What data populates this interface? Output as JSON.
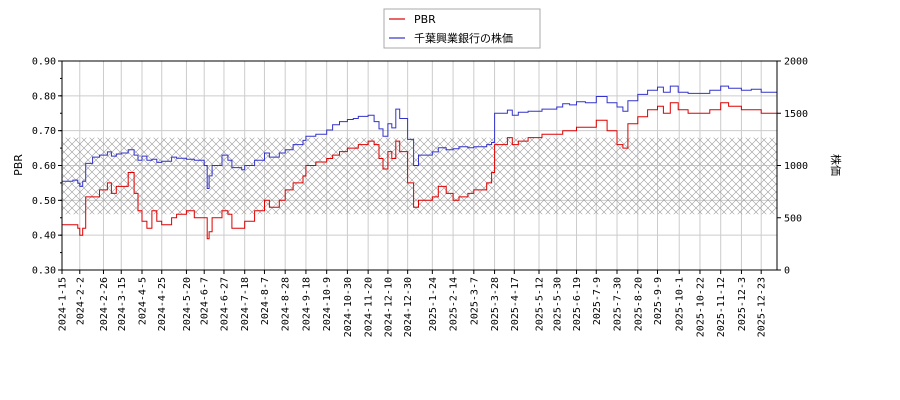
{
  "chart_data": {
    "type": "line",
    "legend": [
      "PBR",
      "千葉興業銀行の株価"
    ],
    "legend_placement": "top-center",
    "grid": true,
    "colors": {
      "pbr": "#dd0000",
      "price": "#3333cc",
      "band": "#999999"
    },
    "ylabel_left": "PBR",
    "ylabel_right": "株価",
    "ylim_left": [
      0.3,
      0.9
    ],
    "ylim_right": [
      0,
      2000
    ],
    "yticks_left": [
      "0.30",
      "0.40",
      "0.50",
      "0.60",
      "0.70",
      "0.80",
      "0.90"
    ],
    "yticks_right": [
      "0",
      "500",
      "1000",
      "1500",
      "2000"
    ],
    "band_range_left": [
      0.46,
      0.68
    ],
    "xlim": [
      "2024-01-15",
      "2026-01-08"
    ],
    "xticks": [
      "2024-1-15",
      "2024-2-2",
      "2024-2-26",
      "2024-3-15",
      "2024-4-5",
      "2024-4-25",
      "2024-5-20",
      "2024-6-7",
      "2024-6-27",
      "2024-7-18",
      "2024-8-7",
      "2024-8-28",
      "2024-9-18",
      "2024-10-9",
      "2024-10-30",
      "2024-11-20",
      "2024-12-10",
      "2024-12-30",
      "2025-1-24",
      "2025-2-14",
      "2025-3-7",
      "2025-3-28",
      "2025-4-17",
      "2025-5-12",
      "2025-5-30",
      "2025-6-19",
      "2025-7-9",
      "2025-7-30",
      "2025-8-20",
      "2025-9-9",
      "2025-10-1",
      "2025-10-22",
      "2025-11-12",
      "2025-12-3",
      "2025-12-23"
    ],
    "series": [
      {
        "name": "PBR",
        "axis": "left",
        "points": [
          [
            "2024-01-15",
            0.43
          ],
          [
            "2024-01-26",
            0.43
          ],
          [
            "2024-01-31",
            0.42
          ],
          [
            "2024-02-02",
            0.4
          ],
          [
            "2024-02-05",
            0.42
          ],
          [
            "2024-02-08",
            0.51
          ],
          [
            "2024-02-22",
            0.53
          ],
          [
            "2024-03-01",
            0.55
          ],
          [
            "2024-03-05",
            0.52
          ],
          [
            "2024-03-10",
            0.54
          ],
          [
            "2024-03-22",
            0.58
          ],
          [
            "2024-03-28",
            0.52
          ],
          [
            "2024-04-01",
            0.47
          ],
          [
            "2024-04-05",
            0.44
          ],
          [
            "2024-04-10",
            0.42
          ],
          [
            "2024-04-15",
            0.47
          ],
          [
            "2024-04-20",
            0.44
          ],
          [
            "2024-04-25",
            0.43
          ],
          [
            "2024-05-05",
            0.45
          ],
          [
            "2024-05-10",
            0.46
          ],
          [
            "2024-05-20",
            0.47
          ],
          [
            "2024-05-28",
            0.45
          ],
          [
            "2024-06-07",
            0.45
          ],
          [
            "2024-06-10",
            0.39
          ],
          [
            "2024-06-12",
            0.41
          ],
          [
            "2024-06-15",
            0.45
          ],
          [
            "2024-06-25",
            0.47
          ],
          [
            "2024-07-01",
            0.46
          ],
          [
            "2024-07-05",
            0.42
          ],
          [
            "2024-07-15",
            0.42
          ],
          [
            "2024-07-18",
            0.44
          ],
          [
            "2024-07-28",
            0.47
          ],
          [
            "2024-08-07",
            0.5
          ],
          [
            "2024-08-12",
            0.48
          ],
          [
            "2024-08-22",
            0.5
          ],
          [
            "2024-08-28",
            0.53
          ],
          [
            "2024-09-05",
            0.55
          ],
          [
            "2024-09-15",
            0.57
          ],
          [
            "2024-09-18",
            0.6
          ],
          [
            "2024-09-28",
            0.61
          ],
          [
            "2024-10-09",
            0.62
          ],
          [
            "2024-10-15",
            0.63
          ],
          [
            "2024-10-22",
            0.64
          ],
          [
            "2024-10-30",
            0.65
          ],
          [
            "2024-11-05",
            0.65
          ],
          [
            "2024-11-10",
            0.66
          ],
          [
            "2024-11-20",
            0.67
          ],
          [
            "2024-11-26",
            0.66
          ],
          [
            "2024-12-01",
            0.62
          ],
          [
            "2024-12-05",
            0.59
          ],
          [
            "2024-12-10",
            0.64
          ],
          [
            "2024-12-14",
            0.62
          ],
          [
            "2024-12-18",
            0.67
          ],
          [
            "2024-12-22",
            0.64
          ],
          [
            "2024-12-30",
            0.55
          ],
          [
            "2025-01-05",
            0.48
          ],
          [
            "2025-01-10",
            0.5
          ],
          [
            "2025-01-24",
            0.51
          ],
          [
            "2025-01-30",
            0.54
          ],
          [
            "2025-02-07",
            0.52
          ],
          [
            "2025-02-14",
            0.5
          ],
          [
            "2025-02-20",
            0.51
          ],
          [
            "2025-03-01",
            0.52
          ],
          [
            "2025-03-07",
            0.53
          ],
          [
            "2025-03-20",
            0.55
          ],
          [
            "2025-03-25",
            0.58
          ],
          [
            "2025-03-28",
            0.66
          ],
          [
            "2025-04-10",
            0.68
          ],
          [
            "2025-04-15",
            0.66
          ],
          [
            "2025-04-21",
            0.67
          ],
          [
            "2025-05-01",
            0.68
          ],
          [
            "2025-05-15",
            0.69
          ],
          [
            "2025-05-30",
            0.69
          ],
          [
            "2025-06-05",
            0.7
          ],
          [
            "2025-06-12",
            0.7
          ],
          [
            "2025-06-19",
            0.71
          ],
          [
            "2025-06-28",
            0.71
          ],
          [
            "2025-07-09",
            0.73
          ],
          [
            "2025-07-20",
            0.7
          ],
          [
            "2025-07-30",
            0.66
          ],
          [
            "2025-08-05",
            0.65
          ],
          [
            "2025-08-10",
            0.72
          ],
          [
            "2025-08-20",
            0.74
          ],
          [
            "2025-08-30",
            0.76
          ],
          [
            "2025-09-09",
            0.77
          ],
          [
            "2025-09-15",
            0.75
          ],
          [
            "2025-09-22",
            0.78
          ],
          [
            "2025-09-30",
            0.76
          ],
          [
            "2025-10-01",
            0.76
          ],
          [
            "2025-10-10",
            0.75
          ],
          [
            "2025-10-22",
            0.75
          ],
          [
            "2025-11-01",
            0.76
          ],
          [
            "2025-11-12",
            0.78
          ],
          [
            "2025-11-20",
            0.77
          ],
          [
            "2025-12-03",
            0.76
          ],
          [
            "2025-12-13",
            0.76
          ],
          [
            "2025-12-23",
            0.75
          ],
          [
            "2026-01-08",
            0.8
          ]
        ]
      },
      {
        "name": "千葉興業銀行の株価",
        "axis": "right",
        "points": [
          [
            "2024-01-15",
            850
          ],
          [
            "2024-01-26",
            860
          ],
          [
            "2024-01-31",
            830
          ],
          [
            "2024-02-02",
            800
          ],
          [
            "2024-02-05",
            850
          ],
          [
            "2024-02-08",
            1020
          ],
          [
            "2024-02-15",
            1080
          ],
          [
            "2024-02-22",
            1100
          ],
          [
            "2024-03-01",
            1130
          ],
          [
            "2024-03-05",
            1090
          ],
          [
            "2024-03-10",
            1110
          ],
          [
            "2024-03-15",
            1120
          ],
          [
            "2024-03-22",
            1150
          ],
          [
            "2024-03-28",
            1100
          ],
          [
            "2024-04-01",
            1050
          ],
          [
            "2024-04-05",
            1090
          ],
          [
            "2024-04-10",
            1050
          ],
          [
            "2024-04-15",
            1060
          ],
          [
            "2024-04-20",
            1030
          ],
          [
            "2024-04-25",
            1040
          ],
          [
            "2024-05-05",
            1080
          ],
          [
            "2024-05-10",
            1070
          ],
          [
            "2024-05-20",
            1060
          ],
          [
            "2024-05-28",
            1050
          ],
          [
            "2024-06-07",
            1000
          ],
          [
            "2024-06-10",
            780
          ],
          [
            "2024-06-12",
            900
          ],
          [
            "2024-06-15",
            1000
          ],
          [
            "2024-06-25",
            1100
          ],
          [
            "2024-07-01",
            1050
          ],
          [
            "2024-07-05",
            980
          ],
          [
            "2024-07-15",
            960
          ],
          [
            "2024-07-18",
            1000
          ],
          [
            "2024-07-28",
            1050
          ],
          [
            "2024-08-07",
            1120
          ],
          [
            "2024-08-12",
            1080
          ],
          [
            "2024-08-22",
            1120
          ],
          [
            "2024-08-28",
            1150
          ],
          [
            "2024-09-05",
            1200
          ],
          [
            "2024-09-15",
            1240
          ],
          [
            "2024-09-18",
            1280
          ],
          [
            "2024-09-28",
            1300
          ],
          [
            "2024-10-09",
            1340
          ],
          [
            "2024-10-15",
            1390
          ],
          [
            "2024-10-22",
            1420
          ],
          [
            "2024-10-30",
            1440
          ],
          [
            "2024-11-05",
            1450
          ],
          [
            "2024-11-10",
            1470
          ],
          [
            "2024-11-20",
            1480
          ],
          [
            "2024-11-26",
            1420
          ],
          [
            "2024-12-01",
            1350
          ],
          [
            "2024-12-05",
            1280
          ],
          [
            "2024-12-10",
            1400
          ],
          [
            "2024-12-14",
            1360
          ],
          [
            "2024-12-18",
            1540
          ],
          [
            "2024-12-22",
            1450
          ],
          [
            "2024-12-30",
            1250
          ],
          [
            "2025-01-05",
            1000
          ],
          [
            "2025-01-10",
            1100
          ],
          [
            "2025-01-24",
            1130
          ],
          [
            "2025-01-30",
            1170
          ],
          [
            "2025-02-07",
            1150
          ],
          [
            "2025-02-14",
            1160
          ],
          [
            "2025-02-20",
            1180
          ],
          [
            "2025-03-01",
            1170
          ],
          [
            "2025-03-07",
            1180
          ],
          [
            "2025-03-20",
            1200
          ],
          [
            "2025-03-25",
            1220
          ],
          [
            "2025-03-28",
            1500
          ],
          [
            "2025-04-10",
            1530
          ],
          [
            "2025-04-15",
            1480
          ],
          [
            "2025-04-21",
            1510
          ],
          [
            "2025-05-01",
            1520
          ],
          [
            "2025-05-15",
            1540
          ],
          [
            "2025-05-30",
            1560
          ],
          [
            "2025-06-05",
            1590
          ],
          [
            "2025-06-12",
            1580
          ],
          [
            "2025-06-19",
            1610
          ],
          [
            "2025-06-28",
            1600
          ],
          [
            "2025-07-09",
            1660
          ],
          [
            "2025-07-20",
            1600
          ],
          [
            "2025-07-30",
            1560
          ],
          [
            "2025-08-05",
            1520
          ],
          [
            "2025-08-10",
            1620
          ],
          [
            "2025-08-20",
            1680
          ],
          [
            "2025-08-30",
            1720
          ],
          [
            "2025-09-09",
            1750
          ],
          [
            "2025-09-15",
            1700
          ],
          [
            "2025-09-22",
            1760
          ],
          [
            "2025-09-30",
            1700
          ],
          [
            "2025-10-01",
            1700
          ],
          [
            "2025-10-10",
            1690
          ],
          [
            "2025-10-22",
            1690
          ],
          [
            "2025-11-01",
            1720
          ],
          [
            "2025-11-12",
            1760
          ],
          [
            "2025-11-20",
            1740
          ],
          [
            "2025-12-03",
            1720
          ],
          [
            "2025-12-13",
            1730
          ],
          [
            "2025-12-23",
            1700
          ],
          [
            "2026-01-08",
            1850
          ]
        ]
      }
    ]
  }
}
